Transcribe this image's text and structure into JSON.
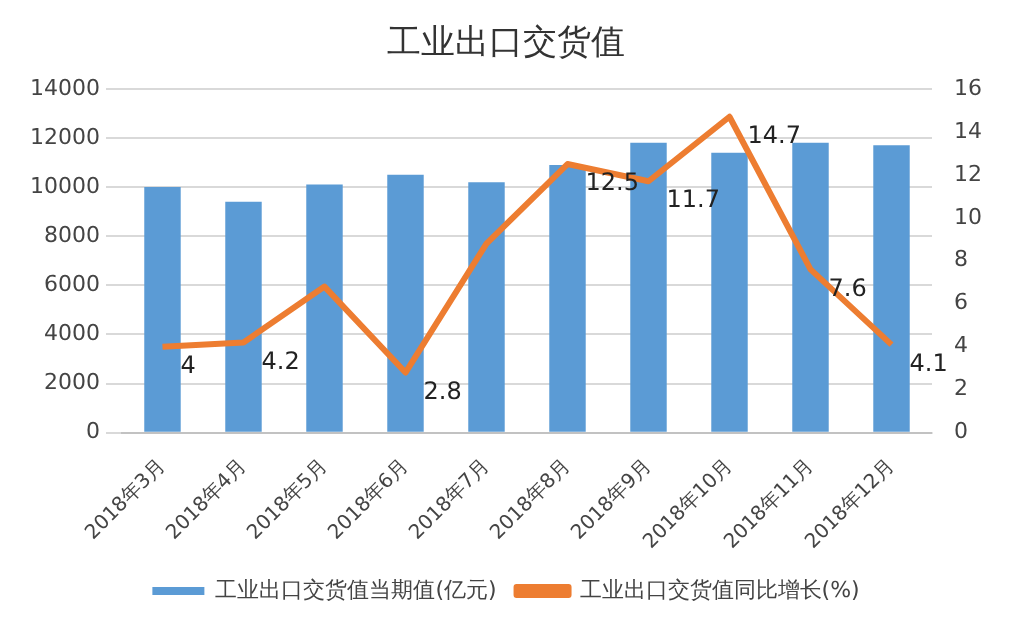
{
  "chart_data": {
    "type": "bar",
    "title": "工业出口交货值",
    "categories": [
      "2018年3月",
      "2018年4月",
      "2018年5月",
      "2018年6月",
      "2018年7月",
      "2018年8月",
      "2018年9月",
      "2018年10月",
      "2018年11月",
      "2018年12月"
    ],
    "series": [
      {
        "name": "工业出口交货值当期值(亿元)",
        "color": "#5b9bd5",
        "values": [
          10000,
          9400,
          10100,
          10500,
          10200,
          10900,
          11800,
          11400,
          11800,
          11700
        ]
      },
      {
        "name": "工业出口交货值同比增长(%)",
        "type": "line",
        "axis": "y2",
        "color": "#ed7d31",
        "values": [
          4,
          4.2,
          6.8,
          2.8,
          8.8,
          12.5,
          11.7,
          14.7,
          7.6,
          4.1
        ],
        "value_labels": [
          "4",
          "4.2",
          null,
          "2.8",
          null,
          "12.5",
          "11.7",
          "14.7",
          "7.6",
          "4.1"
        ]
      }
    ],
    "ylim": [
      0,
      14000
    ],
    "yticks": [
      0,
      2000,
      4000,
      6000,
      8000,
      10000,
      12000,
      14000
    ],
    "y2lim": [
      0,
      16
    ],
    "y2ticks": [
      0,
      2,
      4,
      6,
      8,
      10,
      12,
      14,
      16
    ],
    "grid": "y",
    "legend": "bottom",
    "marker": "none",
    "line_style": "solid"
  }
}
